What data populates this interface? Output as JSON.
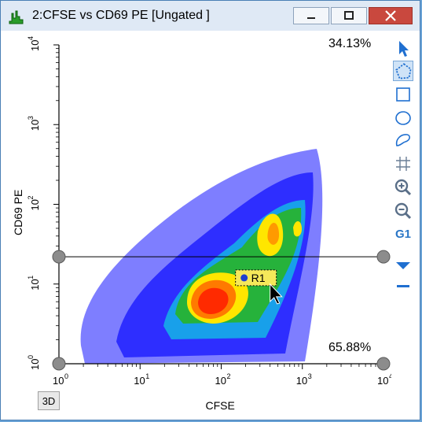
{
  "window": {
    "title": "2:CFSE vs CD69 PE [Ungated ]"
  },
  "plot": {
    "quadrant_top_right_percent": "34.13%",
    "quadrant_bottom_right_percent": "65.88%",
    "region_label": "R1",
    "x_axis": {
      "label": "CFSE",
      "ticks": [
        "10",
        "10",
        "10",
        "10",
        "10"
      ],
      "exponents": [
        "0",
        "1",
        "2",
        "3",
        "4"
      ]
    },
    "y_axis": {
      "label": "CD69 PE",
      "ticks": [
        "10",
        "10",
        "10",
        "10",
        "10"
      ],
      "exponents": [
        "0",
        "1",
        "2",
        "3",
        "4"
      ]
    },
    "x_scale": "log",
    "y_scale": "log",
    "xlim": [
      1,
      10000
    ],
    "ylim": [
      1,
      10000
    ],
    "quadrant_y_value": 22
  },
  "toolbar": {
    "items": [
      "pointer-icon",
      "polygon-gate-icon",
      "rectangle-gate-icon",
      "ellipse-gate-icon",
      "freehand-gate-icon",
      "quadrant-gate-icon",
      "zoom-in-icon",
      "zoom-out-icon",
      "g1-button",
      "dropdown-icon",
      "minus-icon"
    ],
    "g1_label": "G1"
  },
  "buttons": {
    "threed_label": "3D"
  },
  "colors": {
    "title_bg": "#dfe9f5",
    "close_button": "#c9483e",
    "density_low": "#1414ff",
    "density_mid": "#28b428",
    "density_high": "#ffe600",
    "density_peak": "#ff2a00"
  }
}
